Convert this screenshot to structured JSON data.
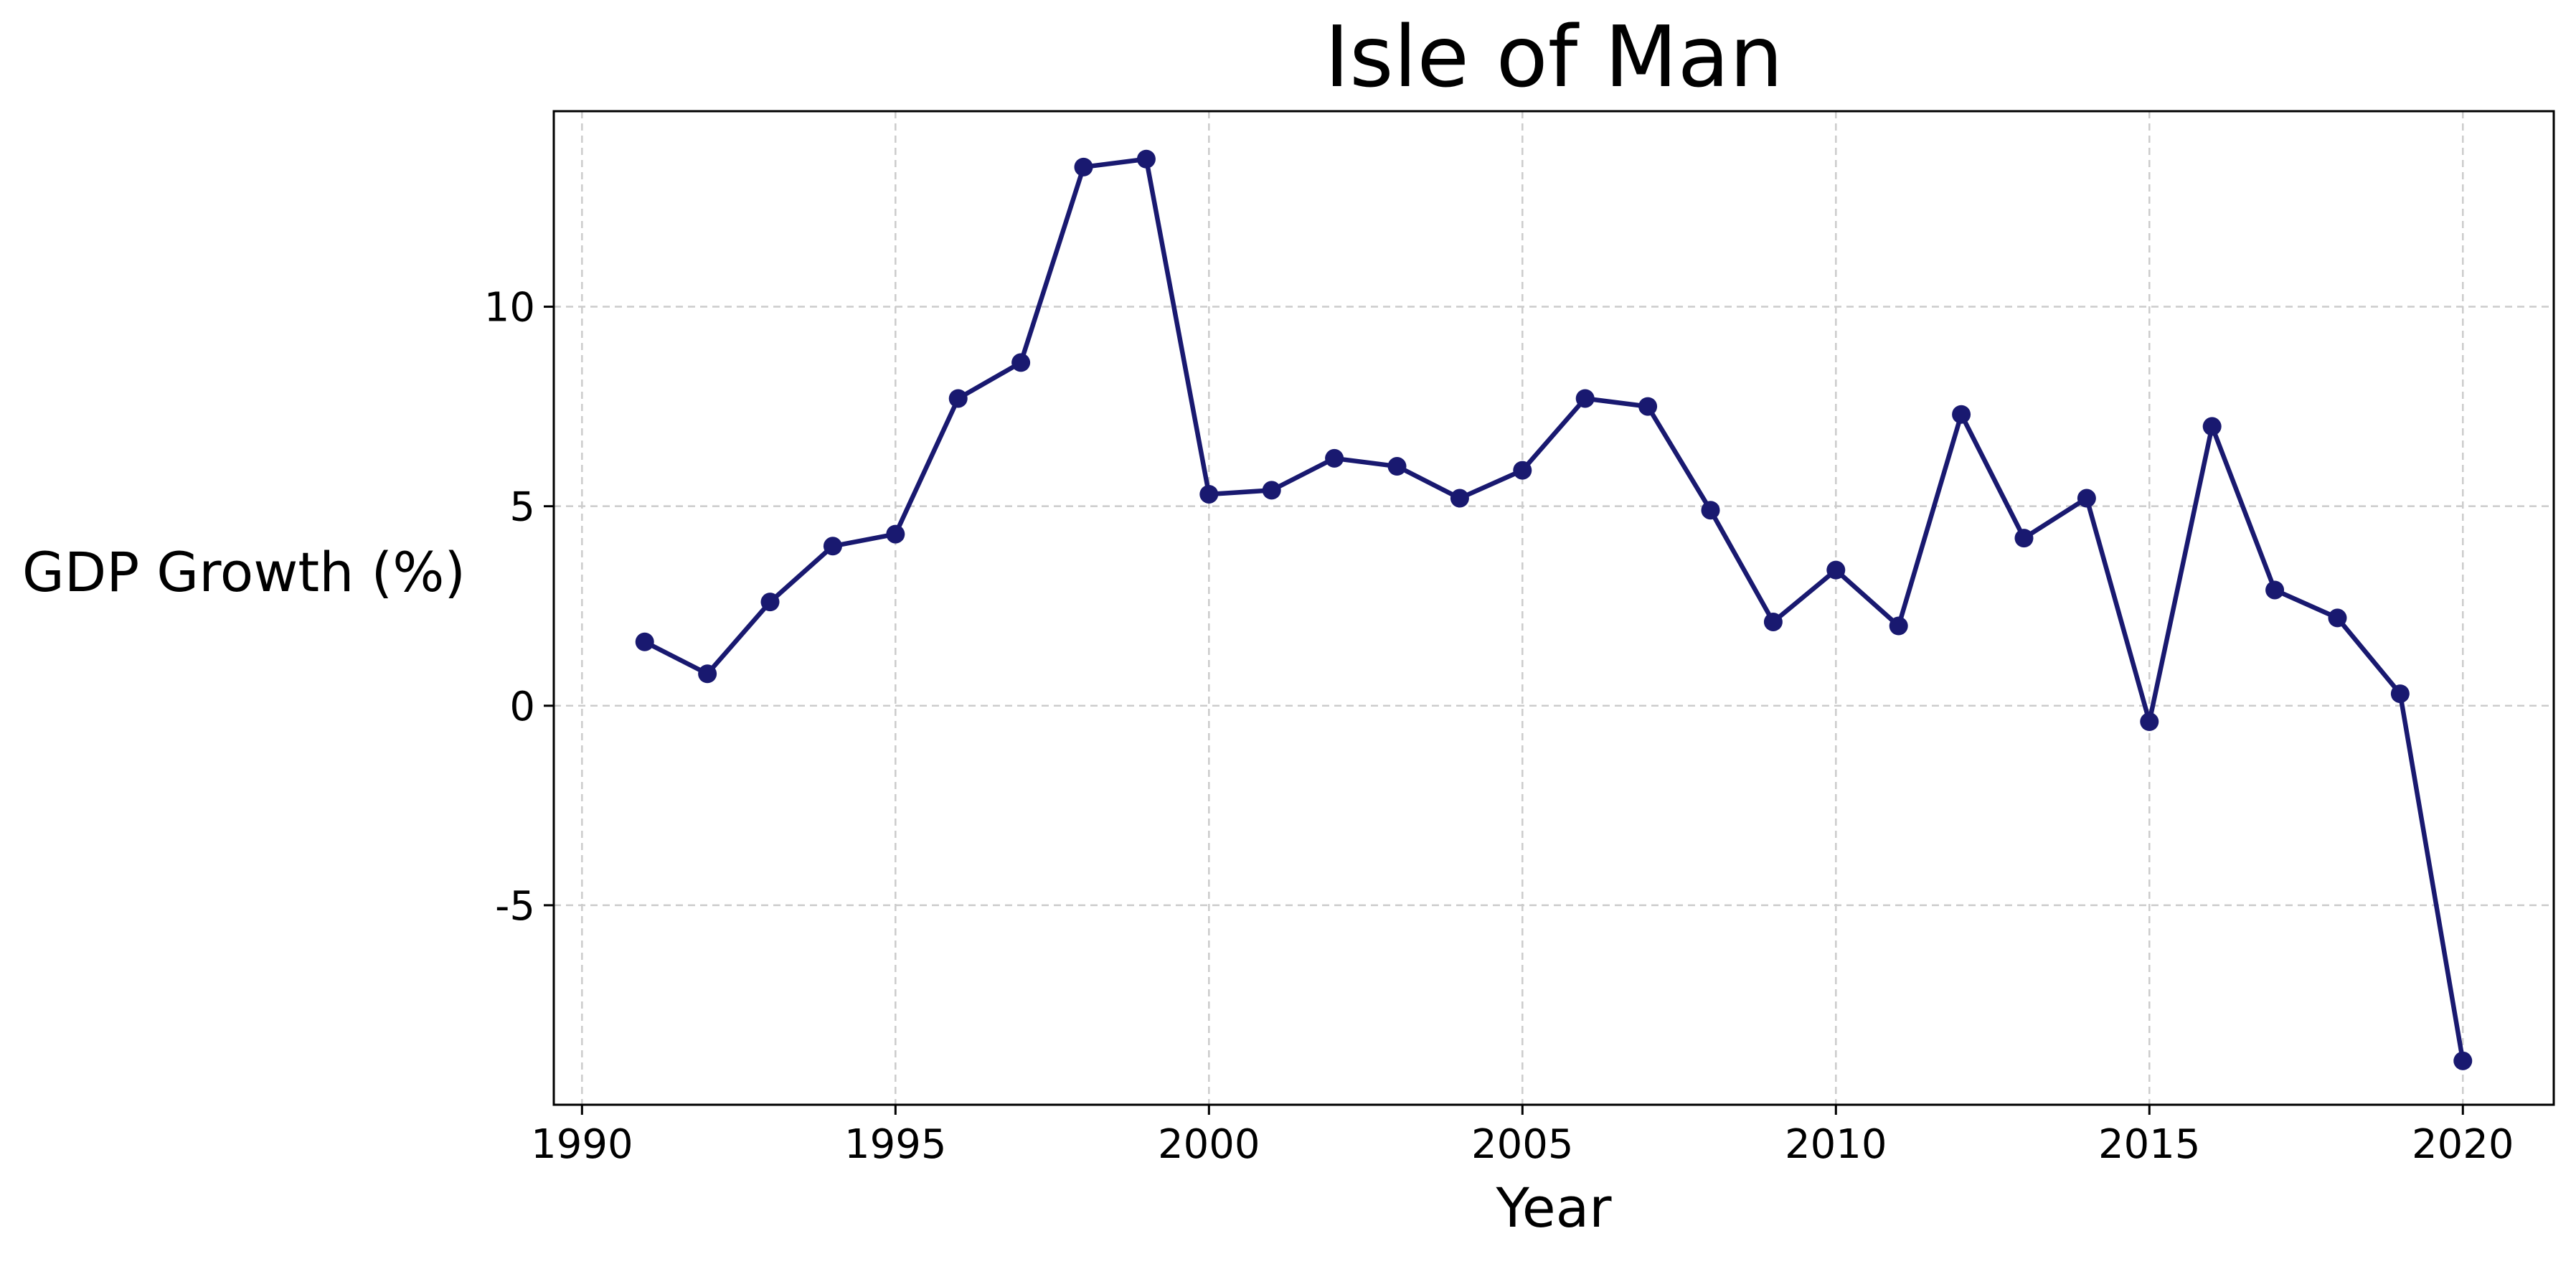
{
  "chart_data": {
    "type": "line",
    "title": "Isle of Man",
    "xlabel": "Year",
    "ylabel": "GDP Growth (%)",
    "xlim": [
      1989.55,
      2021.45
    ],
    "ylim": [
      -10.0,
      14.9
    ],
    "xticks": [
      1990,
      1995,
      2000,
      2005,
      2010,
      2015,
      2020
    ],
    "yticks": [
      -5,
      0,
      5,
      10
    ],
    "xtick_labels": [
      "1990",
      "1995",
      "2000",
      "2005",
      "2010",
      "2015",
      "2020"
    ],
    "ytick_labels": [
      "-5",
      "0",
      "5",
      "10"
    ],
    "grid": true,
    "legend": "none",
    "colors": {
      "line": "#191970",
      "grid": "#cccccc",
      "frame": "#000000"
    },
    "series": [
      {
        "x": [
          1991,
          1992,
          1993,
          1994,
          1995,
          1996,
          1997,
          1998,
          1999,
          2000,
          2001,
          2002,
          2003,
          2004,
          2005,
          2006,
          2007,
          2008,
          2009,
          2010,
          2011,
          2012,
          2013,
          2014,
          2015,
          2016,
          2017,
          2018,
          2019,
          2020
        ],
        "y": [
          1.6,
          0.8,
          2.6,
          4.0,
          4.3,
          7.7,
          8.6,
          13.5,
          13.7,
          5.3,
          5.4,
          6.2,
          6.0,
          5.2,
          5.9,
          7.7,
          7.5,
          4.9,
          2.1,
          3.4,
          2.0,
          7.3,
          4.2,
          5.2,
          -0.4,
          7.0,
          2.9,
          2.2,
          0.3,
          -8.9
        ]
      }
    ]
  }
}
